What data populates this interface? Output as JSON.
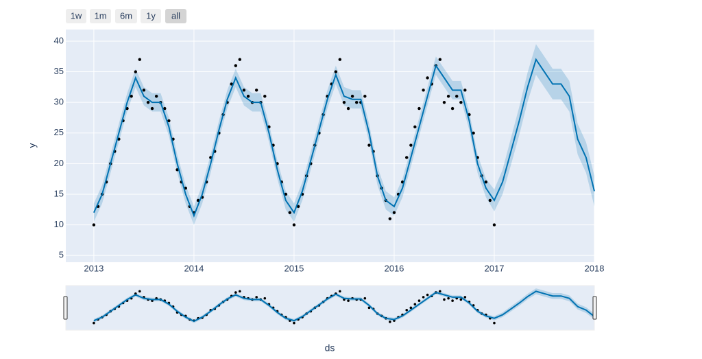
{
  "chart_data": {
    "type": "line",
    "range_buttons": [
      "1w",
      "1m",
      "6m",
      "1y",
      "all"
    ],
    "active_button": 4,
    "x_label": "ds",
    "y_label": "y",
    "xlim": [
      2012.72,
      2018
    ],
    "ylim": [
      3.9,
      41.9
    ],
    "xticks": [
      2013,
      2014,
      2015,
      2016,
      2017,
      2018
    ],
    "yticks": [
      5,
      10,
      15,
      20,
      25,
      30,
      35,
      40
    ],
    "grid": true,
    "plot_bg": "#e5ecf6",
    "point_color": "#000000",
    "line_color": "#0072b2",
    "band_color": "rgba(0,114,178,0.2)",
    "points": {
      "x": [
        2013.0,
        2013.042,
        2013.083,
        2013.125,
        2013.167,
        2013.208,
        2013.25,
        2013.292,
        2013.333,
        2013.375,
        2013.417,
        2013.458,
        2013.5,
        2013.542,
        2013.583,
        2013.625,
        2013.667,
        2013.708,
        2013.75,
        2013.792,
        2013.833,
        2013.875,
        2013.917,
        2013.958,
        2014.0,
        2014.042,
        2014.083,
        2014.125,
        2014.167,
        2014.208,
        2014.25,
        2014.292,
        2014.333,
        2014.375,
        2014.417,
        2014.458,
        2014.5,
        2014.542,
        2014.583,
        2014.625,
        2014.667,
        2014.708,
        2014.75,
        2014.792,
        2014.833,
        2014.875,
        2014.917,
        2014.958,
        2015.0,
        2015.042,
        2015.083,
        2015.125,
        2015.167,
        2015.208,
        2015.25,
        2015.292,
        2015.333,
        2015.375,
        2015.417,
        2015.458,
        2015.5,
        2015.542,
        2015.583,
        2015.625,
        2015.667,
        2015.708,
        2015.75,
        2015.792,
        2015.833,
        2015.875,
        2015.917,
        2015.958,
        2016.0,
        2016.042,
        2016.083,
        2016.125,
        2016.167,
        2016.208,
        2016.25,
        2016.292,
        2016.333,
        2016.375,
        2016.417,
        2016.458,
        2016.5,
        2016.542,
        2016.583,
        2016.625,
        2016.667,
        2016.708,
        2016.75,
        2016.792,
        2016.833,
        2016.875,
        2016.917,
        2016.958,
        2017.0
      ],
      "y": [
        10,
        13,
        15,
        17,
        20,
        22,
        24,
        27,
        29,
        31,
        35,
        37,
        32,
        30,
        29,
        31,
        30,
        29,
        27,
        24,
        19,
        17,
        16,
        13,
        12,
        14,
        14.5,
        17,
        21,
        22,
        25,
        28,
        30,
        33,
        36,
        37,
        32,
        31,
        30,
        32,
        30,
        31,
        26,
        23,
        20,
        17,
        15,
        12,
        10,
        13,
        15,
        18,
        20,
        23,
        25,
        28,
        31,
        33,
        35,
        37,
        30,
        29,
        31,
        30,
        30,
        31,
        23,
        22,
        18,
        16,
        14,
        11,
        12,
        15,
        17,
        21,
        23,
        26,
        29,
        32,
        34,
        33,
        36,
        37,
        30,
        31,
        29,
        31,
        30,
        32,
        28,
        25,
        21,
        18,
        17,
        14,
        10
      ]
    },
    "forecast": {
      "x": [
        2013.0,
        2013.083,
        2013.167,
        2013.25,
        2013.333,
        2013.417,
        2013.5,
        2013.583,
        2013.667,
        2013.75,
        2013.833,
        2013.917,
        2014.0,
        2014.083,
        2014.167,
        2014.25,
        2014.333,
        2014.417,
        2014.5,
        2014.583,
        2014.667,
        2014.75,
        2014.833,
        2014.917,
        2015.0,
        2015.083,
        2015.167,
        2015.25,
        2015.333,
        2015.417,
        2015.5,
        2015.583,
        2015.667,
        2015.75,
        2015.833,
        2015.917,
        2016.0,
        2016.083,
        2016.167,
        2016.25,
        2016.333,
        2016.417,
        2016.5,
        2016.583,
        2016.667,
        2016.75,
        2016.833,
        2016.917,
        2017.0,
        2017.083,
        2017.167,
        2017.25,
        2017.333,
        2017.417,
        2017.5,
        2017.583,
        2017.667,
        2017.75,
        2017.833,
        2017.917,
        2018.0
      ],
      "values": [
        12,
        15,
        20,
        25,
        30,
        34,
        31,
        30,
        30,
        26,
        20,
        15,
        11.5,
        15,
        20,
        25.5,
        30.5,
        34,
        31,
        30,
        30,
        25,
        19,
        14,
        12,
        15.5,
        20.5,
        25.5,
        30.5,
        34.5,
        31,
        30.5,
        30.5,
        25,
        18,
        14,
        13,
        16,
        21,
        26,
        31,
        36,
        34,
        32,
        32,
        27,
        20,
        16,
        14,
        17,
        22,
        27,
        32.5,
        37,
        35,
        33,
        33,
        31,
        24,
        21,
        15.5
      ],
      "upper": [
        13.5,
        16.5,
        21.5,
        26.5,
        31.5,
        35.5,
        32.5,
        31.5,
        31.5,
        27.5,
        21.5,
        16.5,
        13,
        16.5,
        21.5,
        27,
        32,
        35.5,
        32.5,
        31.5,
        31.5,
        26.5,
        20.5,
        15.5,
        13.5,
        17,
        22,
        27,
        32,
        36,
        32.5,
        32,
        32,
        26.5,
        19.5,
        15.5,
        14.5,
        17.5,
        22.5,
        27.5,
        32.5,
        37.5,
        35.5,
        33.5,
        33.5,
        28.5,
        21.5,
        17.5,
        15.8,
        19,
        24.2,
        29.3,
        34.9,
        39.5,
        37.5,
        35.5,
        35.5,
        33.5,
        26.5,
        23.5,
        18
      ],
      "lower": [
        10.5,
        13.5,
        18.5,
        23.5,
        28.5,
        32.5,
        29.5,
        28.5,
        28.5,
        24.5,
        18.5,
        13.5,
        10,
        13.5,
        18.5,
        24,
        29,
        32.5,
        29.5,
        28.5,
        28.5,
        23.5,
        17.5,
        12.5,
        10.5,
        14,
        19,
        24,
        29,
        33,
        29.5,
        29,
        29,
        23.5,
        16.5,
        12.5,
        11.5,
        14.5,
        19.5,
        24.5,
        29.5,
        34.5,
        32.5,
        30.5,
        30.5,
        25.5,
        18.5,
        14.5,
        12.2,
        15,
        19.8,
        24.7,
        30.1,
        34.5,
        32.5,
        30.5,
        30.5,
        28.5,
        21.5,
        18.5,
        13
      ]
    }
  }
}
